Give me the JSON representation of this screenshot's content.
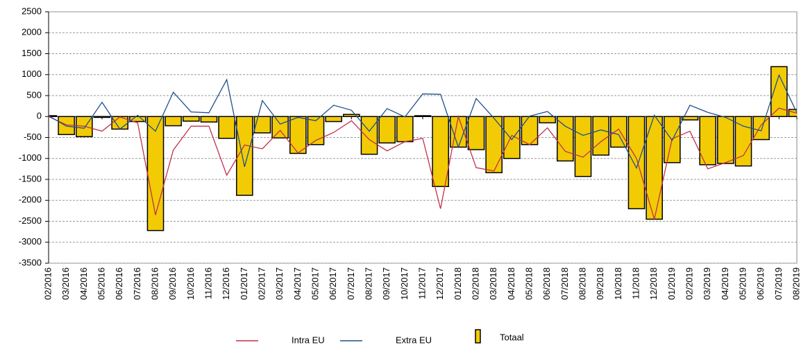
{
  "chart_data": {
    "type": "bar",
    "categories": [
      "02/2016",
      "03/2016",
      "04/2016",
      "05/2016",
      "06/2016",
      "07/2016",
      "08/2016",
      "09/2016",
      "10/2016",
      "11/2016",
      "12/2016",
      "01/2017",
      "02/2017",
      "03/2017",
      "04/2017",
      "05/2017",
      "06/2017",
      "07/2017",
      "08/2017",
      "09/2017",
      "10/2017",
      "11/2017",
      "12/2017",
      "01/2018",
      "02/2018",
      "03/2018",
      "04/2018",
      "05/2018",
      "06/2018",
      "07/2018",
      "08/2018",
      "09/2018",
      "10/2018",
      "11/2018",
      "12/2018",
      "01/2019",
      "02/2019",
      "03/2019",
      "04/2019",
      "05/2019",
      "06/2019",
      "07/2019",
      "08/2019"
    ],
    "series": [
      {
        "name": "Intra EU",
        "type": "line",
        "color": "#c0304a",
        "values": [
          0,
          -200,
          -230,
          -350,
          -10,
          -150,
          -2350,
          -800,
          -230,
          -230,
          -1400,
          -680,
          -770,
          -330,
          -870,
          -570,
          -380,
          -100,
          -550,
          -820,
          -600,
          -520,
          -2200,
          0,
          -1220,
          -1300,
          -450,
          -670,
          -270,
          -830,
          -970,
          -600,
          -300,
          -1000,
          -2450,
          -530,
          -350,
          -1250,
          -1100,
          -930,
          -200,
          200,
          80
        ]
      },
      {
        "name": "Extra EU",
        "type": "line",
        "color": "#1f4e8c",
        "values": [
          20,
          -230,
          -280,
          340,
          -300,
          30,
          -350,
          580,
          110,
          90,
          880,
          -1200,
          380,
          -180,
          -20,
          -100,
          270,
          150,
          -350,
          190,
          -10,
          540,
          530,
          -730,
          430,
          -40,
          -550,
          10,
          120,
          -230,
          -450,
          -320,
          -430,
          -1230,
          30,
          -570,
          270,
          100,
          -20,
          -230,
          -340,
          990,
          90
        ]
      },
      {
        "name": "Totaal",
        "type": "bar",
        "color": "#f2cb05",
        "values": [
          20,
          -430,
          -480,
          -20,
          -300,
          -120,
          -2720,
          -220,
          -110,
          -130,
          -520,
          -1880,
          -390,
          -510,
          -880,
          -670,
          -120,
          50,
          -900,
          -630,
          -600,
          20,
          -1670,
          -730,
          -790,
          -1340,
          -1000,
          -670,
          -150,
          -1060,
          -1430,
          -920,
          -730,
          -2200,
          -2450,
          -1100,
          -80,
          -1150,
          -1120,
          -1180,
          -550,
          1190,
          170
        ]
      }
    ],
    "ylim": [
      -3500,
      2500
    ],
    "yticks": [
      -3500,
      -3000,
      -2500,
      -2000,
      -1500,
      -1000,
      -500,
      0,
      500,
      1000,
      1500,
      2000,
      2500
    ],
    "grid": true
  }
}
